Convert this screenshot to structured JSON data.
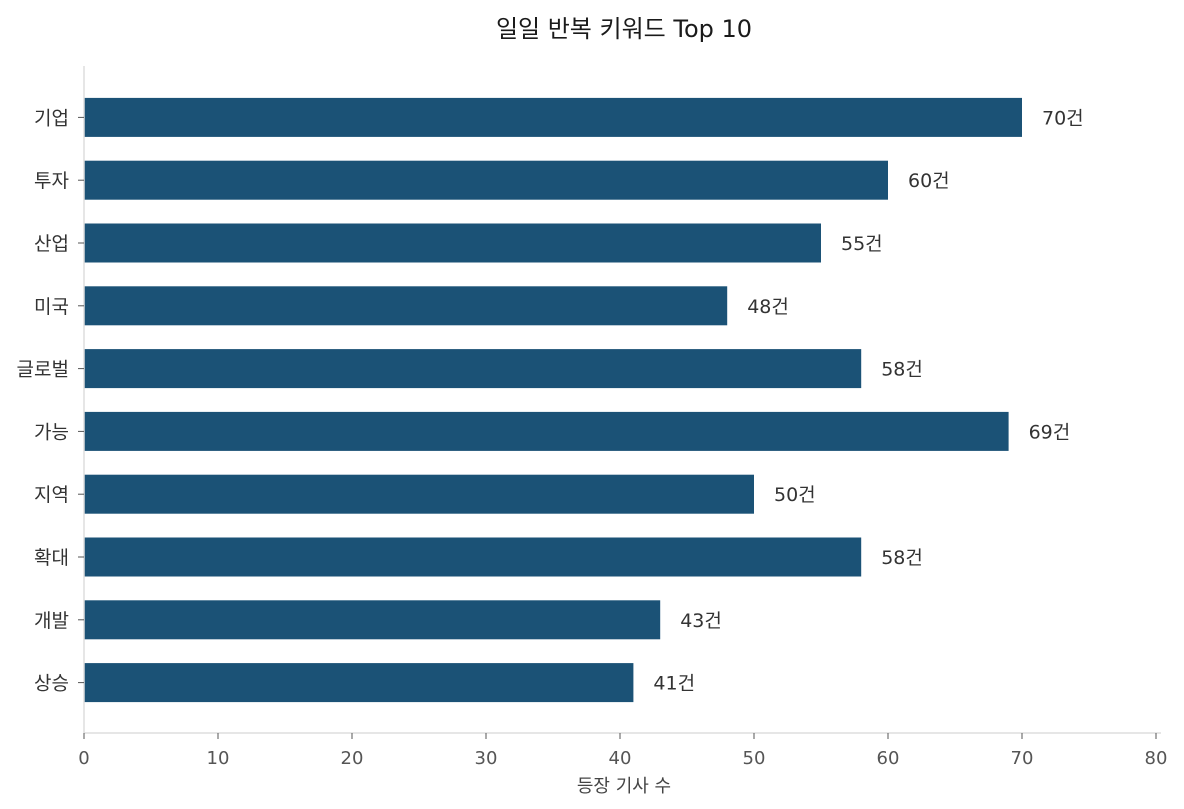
{
  "chart_data": {
    "type": "bar",
    "orientation": "horizontal",
    "title": "일일 반복 키워드 Top 10",
    "xlabel": "등장 기사 수",
    "ylabel": "",
    "categories": [
      "기업",
      "투자",
      "산업",
      "미국",
      "글로벌",
      "가능",
      "지역",
      "확대",
      "개발",
      "상승"
    ],
    "values": [
      70,
      60,
      55,
      48,
      58,
      69,
      50,
      58,
      43,
      41
    ],
    "value_suffix": "건",
    "xlim": [
      0,
      80
    ],
    "xticks": [
      0,
      10,
      20,
      30,
      40,
      50,
      60,
      70,
      80
    ],
    "bar_color": "#1b5276",
    "grid": false,
    "legend": "none"
  }
}
